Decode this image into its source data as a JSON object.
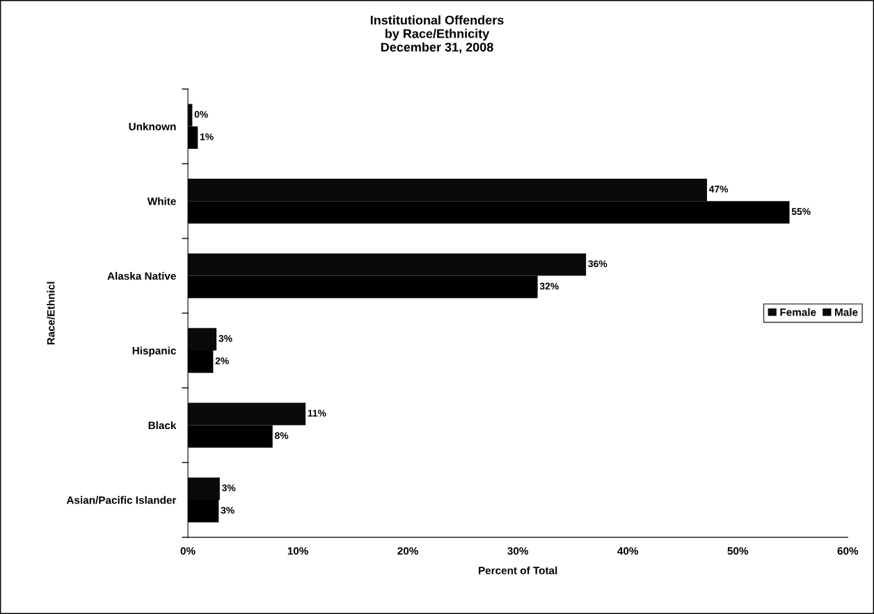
{
  "chart_data": {
    "type": "bar",
    "orientation": "horizontal",
    "title": "Institutional Offenders\nby Race/Ethnicity\nDecember 31, 2008",
    "xlabel": "Percent of Total",
    "ylabel": "Race/Ethnicl",
    "categories": [
      "Unknown",
      "White",
      "Alaska Native",
      "Hispanic",
      "Black",
      "Asian/Pacific Islander"
    ],
    "series": [
      {
        "name": "Female",
        "color": "#0a0a0a",
        "values": [
          0.4,
          47.2,
          36.2,
          2.6,
          10.7,
          2.9
        ],
        "value_labels": [
          "0%",
          "47%",
          "36%",
          "3%",
          "11%",
          "3%"
        ]
      },
      {
        "name": "Male",
        "color": "#000000",
        "values": [
          0.9,
          54.7,
          31.8,
          2.3,
          7.7,
          2.8
        ],
        "value_labels": [
          "1%",
          "55%",
          "32%",
          "2%",
          "8%",
          "3%"
        ]
      }
    ],
    "xlim": [
      0,
      60
    ],
    "xticks": [
      {
        "value": 0,
        "label": "0%"
      },
      {
        "value": 10,
        "label": "10%"
      },
      {
        "value": 20,
        "label": "20%"
      },
      {
        "value": 30,
        "label": "30%"
      },
      {
        "value": 40,
        "label": "40%"
      },
      {
        "value": 50,
        "label": "50%"
      },
      {
        "value": 60,
        "label": "60%"
      }
    ],
    "grid": false,
    "legend": "right"
  }
}
